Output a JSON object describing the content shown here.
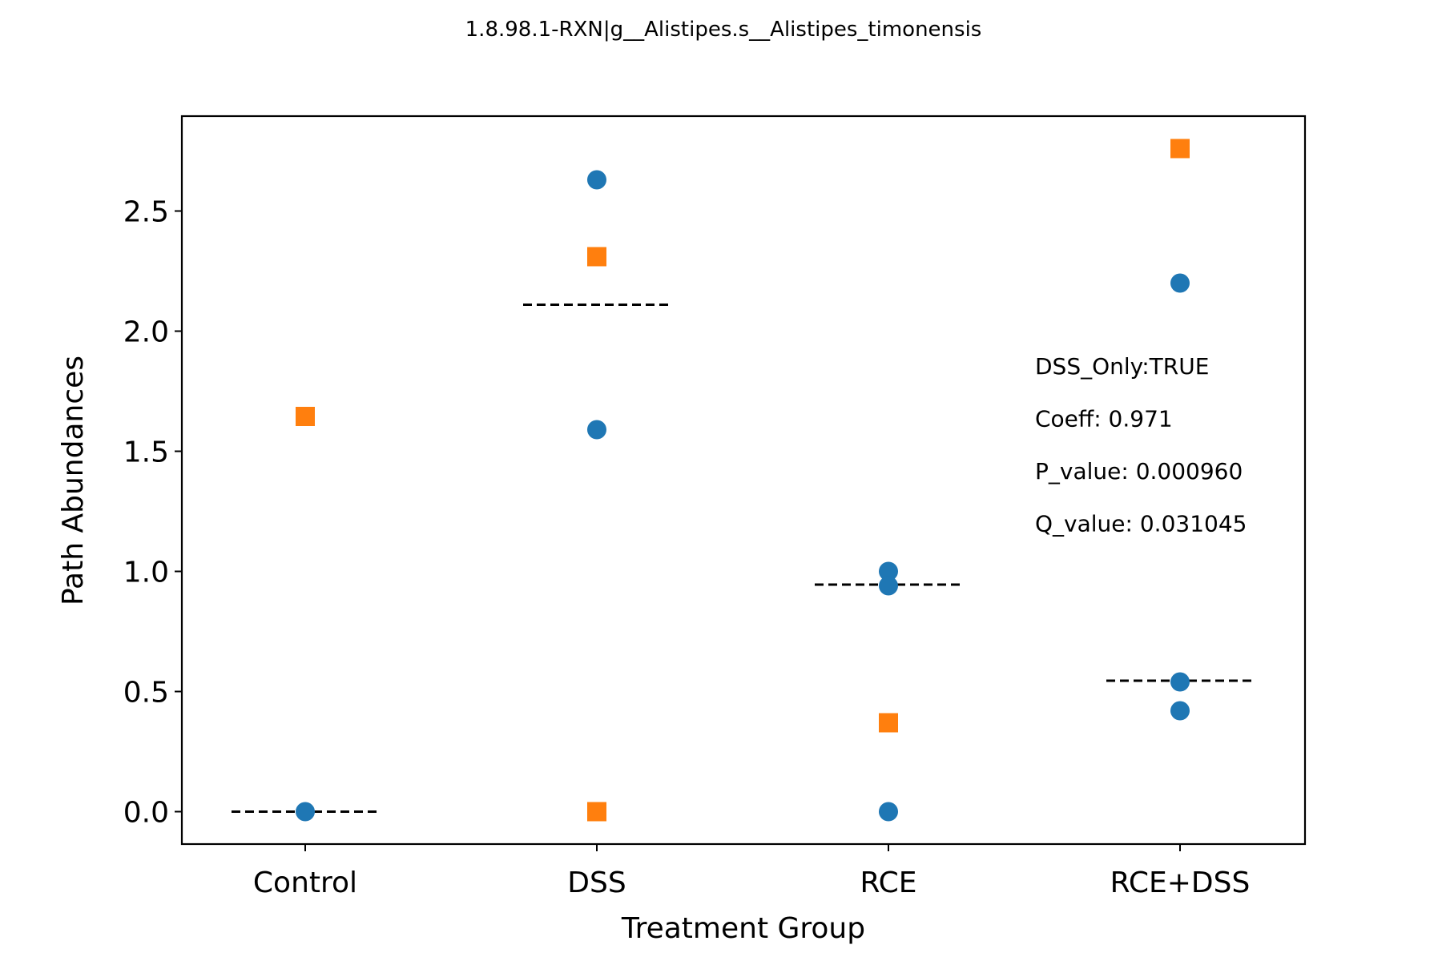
{
  "chart_data": {
    "type": "scatter",
    "title": "1.8.98.1-RXN|g__Alistipes.s__Alistipes_timonensis",
    "xlabel": "Treatment Group",
    "ylabel": "Path Abundances",
    "categories": [
      "Control",
      "DSS",
      "RCE",
      "RCE+DSS"
    ],
    "ylim": [
      -0.135,
      2.895
    ],
    "yticks": [
      "0.0",
      "0.5",
      "1.0",
      "1.5",
      "2.0",
      "2.5"
    ],
    "grid": false,
    "series": [
      {
        "marker": "circle",
        "color": "#1f77b4",
        "points": [
          {
            "category": "Control",
            "y": 0.0
          },
          {
            "category": "DSS",
            "y": 2.63
          },
          {
            "category": "DSS",
            "y": 1.59
          },
          {
            "category": "RCE",
            "y": 1.0
          },
          {
            "category": "RCE",
            "y": 0.94
          },
          {
            "category": "RCE",
            "y": 0.0
          },
          {
            "category": "RCE+DSS",
            "y": 2.2
          },
          {
            "category": "RCE+DSS",
            "y": 0.54
          },
          {
            "category": "RCE+DSS",
            "y": 0.42
          }
        ]
      },
      {
        "marker": "square",
        "color": "#ff7f0e",
        "points": [
          {
            "category": "Control",
            "y": 1.645
          },
          {
            "category": "DSS",
            "y": 2.31
          },
          {
            "category": "DSS",
            "y": 0.0
          },
          {
            "category": "RCE",
            "y": 0.37
          },
          {
            "category": "RCE+DSS",
            "y": 2.76
          }
        ]
      }
    ],
    "group_means": [
      {
        "category": "Control",
        "y": 0.0
      },
      {
        "category": "DSS",
        "y": 2.11
      },
      {
        "category": "RCE",
        "y": 0.945
      },
      {
        "category": "RCE+DSS",
        "y": 0.545
      }
    ],
    "annotations": [
      "DSS_Only:TRUE",
      "Coeff: 0.971",
      "P_value: 0.000960",
      "Q_value: 0.031045"
    ]
  }
}
